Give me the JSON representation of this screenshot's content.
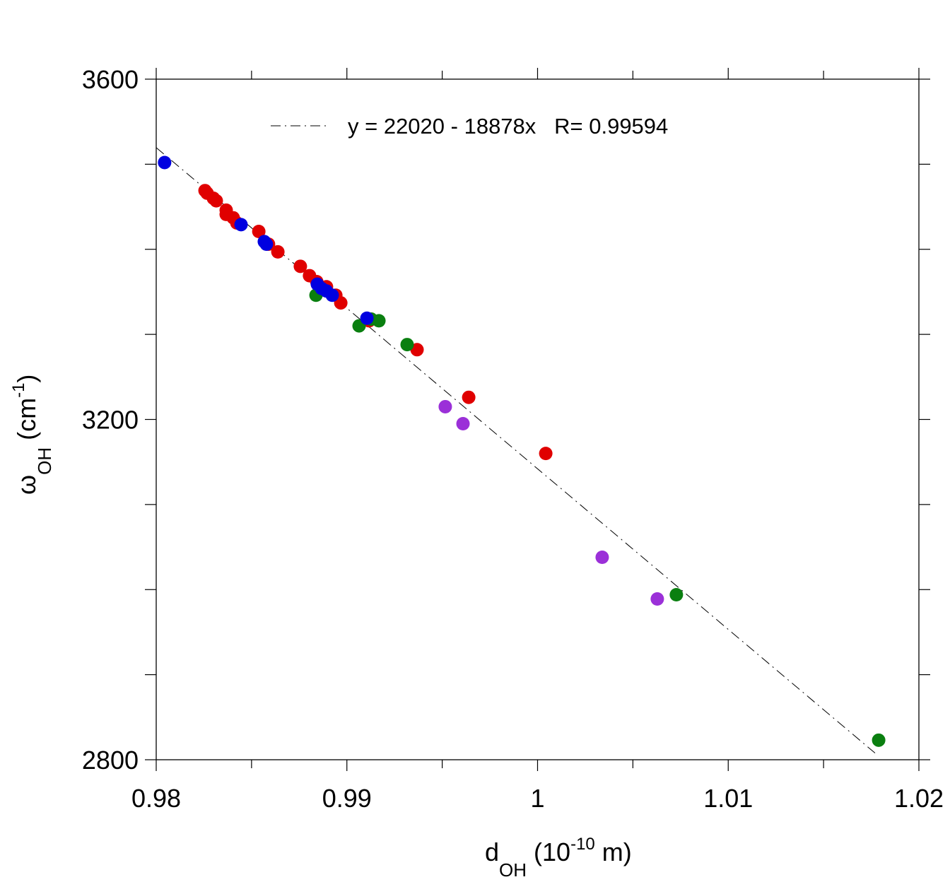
{
  "chart_data": {
    "type": "scatter",
    "title": "",
    "xlabel": {
      "main": "d",
      "sub": "OH",
      "rest": " (10",
      "sup": "-10",
      "end": " m)"
    },
    "ylabel": {
      "main": "ω",
      "sub": "OH",
      "rest": " (cm",
      "sup": "-1",
      "end": ")"
    },
    "xlim": [
      0.98,
      1.02
    ],
    "ylim": [
      2800,
      3600
    ],
    "x_ticks": [
      0.98,
      0.99,
      1,
      1.01,
      1.02
    ],
    "x_tick_labels": [
      "0.98",
      "0.99",
      "1",
      "1.01",
      "1.02"
    ],
    "x_minor_step": 0.005,
    "y_ticks": [
      2800,
      3200,
      3600
    ],
    "y_tick_labels": [
      "2800",
      "3200",
      "3600"
    ],
    "y_minor_step": 100,
    "grid": false,
    "legend": {
      "position": "top",
      "label": "y = 22020 - 18878x   R= 0.99594"
    },
    "fit": {
      "intercept": 22020,
      "slope": -18878,
      "R": 0.99594,
      "x_range": [
        0.98,
        1.0177
      ]
    },
    "series": [
      {
        "name": "red",
        "color": "#e00000",
        "points": [
          [
            0.98256,
            3469
          ],
          [
            0.98267,
            3466
          ],
          [
            0.983,
            3460
          ],
          [
            0.98315,
            3457
          ],
          [
            0.98367,
            3446
          ],
          [
            0.98367,
            3441
          ],
          [
            0.98404,
            3437
          ],
          [
            0.98423,
            3431
          ],
          [
            0.98538,
            3421
          ],
          [
            0.98589,
            3406
          ],
          [
            0.98638,
            3397
          ],
          [
            0.98756,
            3380
          ],
          [
            0.98804,
            3369
          ],
          [
            0.98842,
            3362
          ],
          [
            0.98893,
            3356
          ],
          [
            0.98942,
            3346
          ],
          [
            0.98968,
            3337
          ],
          [
            0.99116,
            3316
          ],
          [
            0.99368,
            3282
          ],
          [
            0.99639,
            3226
          ],
          [
            1.00043,
            3160
          ]
        ]
      },
      {
        "name": "green",
        "color": "#0a7f10",
        "points": [
          [
            0.98838,
            3346
          ],
          [
            0.99064,
            3310
          ],
          [
            0.99127,
            3318
          ],
          [
            0.99168,
            3316
          ],
          [
            0.99316,
            3288
          ],
          [
            1.00728,
            2994
          ],
          [
            1.01789,
            2823
          ]
        ]
      },
      {
        "name": "purple",
        "color": "#9b30d8",
        "points": [
          [
            0.99516,
            3215
          ],
          [
            0.99609,
            3195
          ],
          [
            1.00339,
            3038
          ],
          [
            1.00628,
            2989
          ]
        ]
      },
      {
        "name": "blue",
        "color": "#0000e0",
        "points": [
          [
            0.98044,
            3502
          ],
          [
            0.98445,
            3429
          ],
          [
            0.98567,
            3409
          ],
          [
            0.98578,
            3406
          ],
          [
            0.98845,
            3359
          ],
          [
            0.98867,
            3354
          ],
          [
            0.98893,
            3351
          ],
          [
            0.98923,
            3346
          ],
          [
            0.99105,
            3319
          ]
        ]
      }
    ]
  }
}
